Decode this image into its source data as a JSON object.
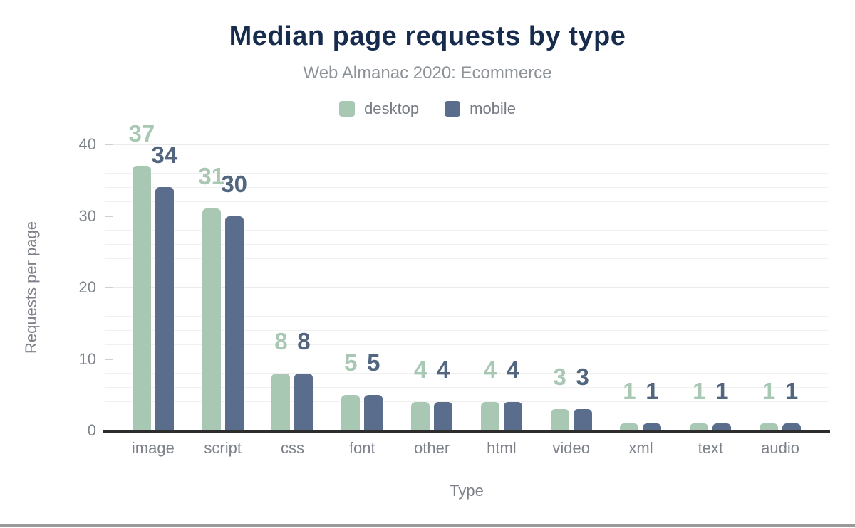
{
  "header": {
    "title": "Median page requests by type",
    "subtitle": "Web Almanac 2020: Ecommerce"
  },
  "colors": {
    "title_navy": "#172b4d",
    "subtitle_gray": "#8e939a",
    "axis_text_gray": "#7d828a",
    "axis_line": "#2d2d2d",
    "desktop_green": "#a8c8b4",
    "mobile_slate": "#5a6d8c",
    "mobile_label": "#53667f",
    "gridline": "#f1f1f1"
  },
  "chart_data": {
    "type": "bar",
    "title": "Median page requests by type",
    "subtitle": "Web Almanac 2020: Ecommerce",
    "categories": [
      "image",
      "script",
      "css",
      "font",
      "other",
      "html",
      "video",
      "xml",
      "text",
      "audio"
    ],
    "series": [
      {
        "name": "desktop",
        "bar_color": "#a8c8b4",
        "label_color": "#a8c8b4",
        "values": [
          37,
          31,
          8,
          5,
          4,
          4,
          3,
          1,
          1,
          1
        ]
      },
      {
        "name": "mobile",
        "bar_color": "#5a6d8c",
        "label_color": "#53667f",
        "values": [
          34,
          30,
          8,
          5,
          4,
          4,
          3,
          1,
          1,
          1
        ]
      }
    ],
    "xlabel": "Type",
    "ylabel": "Requests per page",
    "ylim": [
      0,
      40
    ],
    "yticks": [
      0,
      10,
      20,
      30,
      40
    ],
    "grid": "horizontal minor gridlines every 2 units",
    "legend_position": "top center",
    "data_labels": "above bars, colored per series"
  }
}
